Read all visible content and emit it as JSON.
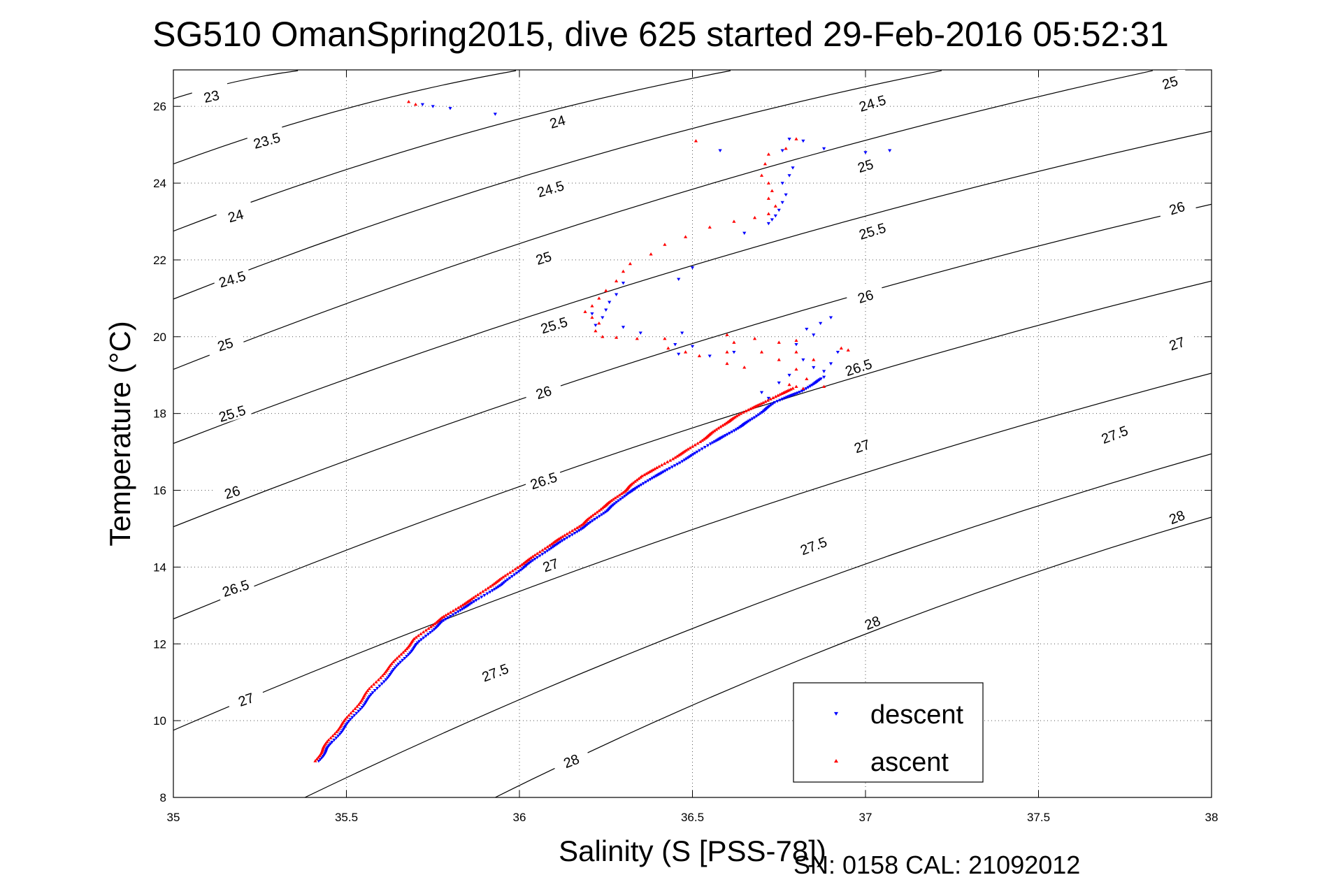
{
  "chart_data": {
    "type": "scatter",
    "title": "SG510 OmanSpring2015, dive 625 started 29-Feb-2016 05:52:31",
    "xlabel": "Salinity (S [PSS-78])",
    "ylabel": "Temperature (°C)",
    "xlim": [
      35,
      38
    ],
    "ylim": [
      8,
      26.95
    ],
    "xticks": [
      35,
      35.5,
      36,
      36.5,
      37,
      37.5,
      38
    ],
    "xtick_labels": [
      "35",
      "35.5",
      "36",
      "36.5",
      "37",
      "37.5",
      "38"
    ],
    "yticks": [
      8,
      10,
      12,
      14,
      16,
      18,
      20,
      22,
      24,
      26
    ],
    "ytick_labels": [
      "8",
      "10",
      "12",
      "14",
      "16",
      "18",
      "20",
      "22",
      "24",
      "26"
    ],
    "grid": true,
    "legend_position": "bottom-right",
    "footer": "SN: 0158  CAL: 21092012",
    "colors": {
      "descent": "#0000ff",
      "ascent": "#ff0000",
      "contour": "#000000"
    },
    "density_contours": [
      {
        "level": 23,
        "label": "23",
        "points": [
          [
            35,
            26.2
          ],
          [
            35.36,
            26.93
          ]
        ],
        "label_points": [
          [
            35.11,
            26.26
          ]
        ]
      },
      {
        "level": 23.5,
        "label": "23.5",
        "points": [
          [
            35,
            24.5
          ],
          [
            35.99,
            26.93
          ]
        ],
        "label_points": [
          [
            35.27,
            25.11
          ]
        ]
      },
      {
        "level": 24,
        "label": "24",
        "points": [
          [
            35,
            22.75
          ],
          [
            36.61,
            26.93
          ]
        ],
        "label_points": [
          [
            35.18,
            23.15
          ],
          [
            36.11,
            25.6
          ]
        ]
      },
      {
        "level": 24.5,
        "label": "24.5",
        "points": [
          [
            35,
            20.98
          ],
          [
            37.22,
            26.93
          ]
        ],
        "label_points": [
          [
            35.17,
            21.5
          ],
          [
            36.09,
            23.85
          ],
          [
            37.02,
            26.08
          ]
        ]
      },
      {
        "level": 25,
        "label": "25",
        "points": [
          [
            35,
            19.15
          ],
          [
            37.83,
            26.93
          ]
        ],
        "label_points": [
          [
            35.15,
            19.8
          ],
          [
            36.07,
            22.05
          ],
          [
            37.0,
            24.45
          ],
          [
            37.88,
            26.62
          ]
        ]
      },
      {
        "level": 25.5,
        "label": "25.5",
        "points": [
          [
            35,
            17.22
          ],
          [
            38,
            25.35
          ]
        ],
        "label_points": [
          [
            35.17,
            18.0
          ],
          [
            36.1,
            20.3
          ],
          [
            37.02,
            22.75
          ]
        ]
      },
      {
        "level": 26,
        "label": "26",
        "points": [
          [
            35,
            15.05
          ],
          [
            38,
            23.45
          ]
        ],
        "label_points": [
          [
            35.17,
            15.95
          ],
          [
            36.07,
            18.55
          ],
          [
            37.0,
            21.05
          ],
          [
            37.9,
            23.35
          ]
        ]
      },
      {
        "level": 26.5,
        "label": "26.5",
        "points": [
          [
            35,
            12.65
          ],
          [
            38,
            21.45
          ]
        ],
        "label_points": [
          [
            35.18,
            13.45
          ],
          [
            36.07,
            16.25
          ],
          [
            36.98,
            19.2
          ]
        ]
      },
      {
        "level": 27,
        "label": "27",
        "points": [
          [
            35,
            9.75
          ],
          [
            38,
            19.05
          ]
        ],
        "label_points": [
          [
            35.21,
            10.55
          ],
          [
            36.09,
            14.05
          ],
          [
            36.99,
            17.15
          ],
          [
            37.9,
            19.82
          ]
        ]
      },
      {
        "level": 27.5,
        "label": "27.5",
        "points": [
          [
            35.38,
            8
          ],
          [
            38,
            16.95
          ]
        ],
        "label_points": [
          [
            35.93,
            11.25
          ],
          [
            36.85,
            14.55
          ],
          [
            37.72,
            17.45
          ]
        ]
      },
      {
        "level": 28,
        "label": "28",
        "points": [
          [
            35.93,
            8
          ],
          [
            38,
            15.3
          ]
        ],
        "label_points": [
          [
            36.15,
            8.95
          ],
          [
            37.02,
            12.55
          ],
          [
            37.9,
            15.3
          ]
        ]
      }
    ],
    "series": [
      {
        "name": "descent",
        "marker": "triangle-down",
        "trace": [
          [
            35.42,
            8.95
          ],
          [
            35.46,
            9.45
          ],
          [
            35.52,
            10.1
          ],
          [
            35.58,
            10.75
          ],
          [
            35.65,
            11.45
          ],
          [
            35.71,
            12.05
          ],
          [
            35.78,
            12.6
          ],
          [
            35.86,
            13.05
          ],
          [
            35.95,
            13.55
          ],
          [
            36.02,
            14.05
          ],
          [
            36.1,
            14.55
          ],
          [
            36.18,
            15.0
          ],
          [
            36.25,
            15.45
          ],
          [
            36.31,
            15.9
          ],
          [
            36.38,
            16.3
          ],
          [
            36.46,
            16.7
          ],
          [
            36.55,
            17.2
          ],
          [
            36.62,
            17.55
          ],
          [
            36.68,
            17.9
          ],
          [
            36.74,
            18.3
          ],
          [
            36.82,
            18.6
          ],
          [
            36.88,
            18.95
          ]
        ],
        "extra": [
          [
            35.75,
            26.0
          ],
          [
            35.8,
            25.95
          ],
          [
            35.93,
            25.8
          ],
          [
            35.72,
            26.05
          ],
          [
            36.76,
            24.85
          ],
          [
            36.79,
            24.4
          ],
          [
            36.78,
            24.2
          ],
          [
            36.76,
            24.0
          ],
          [
            36.77,
            23.7
          ],
          [
            36.76,
            23.5
          ],
          [
            36.75,
            23.3
          ],
          [
            36.74,
            23.15
          ],
          [
            36.73,
            23.05
          ],
          [
            36.72,
            22.95
          ],
          [
            36.78,
            25.15
          ],
          [
            36.82,
            25.1
          ],
          [
            36.88,
            24.9
          ],
          [
            37.07,
            24.85
          ],
          [
            37.0,
            24.8
          ],
          [
            36.58,
            24.85
          ],
          [
            36.65,
            22.7
          ],
          [
            36.5,
            21.8
          ],
          [
            36.46,
            21.5
          ],
          [
            36.3,
            21.4
          ],
          [
            36.28,
            21.1
          ],
          [
            36.26,
            20.9
          ],
          [
            36.25,
            20.7
          ],
          [
            36.24,
            20.5
          ],
          [
            36.22,
            20.3
          ],
          [
            36.21,
            20.6
          ],
          [
            36.3,
            20.25
          ],
          [
            36.35,
            20.1
          ],
          [
            36.47,
            20.1
          ],
          [
            36.45,
            19.8
          ],
          [
            36.46,
            19.55
          ],
          [
            36.5,
            19.75
          ],
          [
            36.55,
            19.5
          ],
          [
            36.62,
            19.6
          ],
          [
            36.8,
            19.8
          ],
          [
            36.82,
            19.4
          ],
          [
            36.85,
            19.2
          ],
          [
            36.88,
            19.1
          ],
          [
            36.9,
            19.3
          ],
          [
            36.92,
            19.6
          ],
          [
            36.85,
            20.05
          ],
          [
            36.83,
            20.2
          ],
          [
            36.87,
            20.35
          ],
          [
            36.9,
            20.5
          ],
          [
            36.78,
            19.0
          ],
          [
            36.75,
            18.8
          ],
          [
            36.7,
            18.55
          ],
          [
            36.72,
            18.4
          ]
        ]
      },
      {
        "name": "ascent",
        "marker": "triangle-up",
        "trace": [
          [
            35.41,
            8.95
          ],
          [
            35.45,
            9.5
          ],
          [
            35.51,
            10.15
          ],
          [
            35.57,
            10.85
          ],
          [
            35.64,
            11.55
          ],
          [
            35.7,
            12.15
          ],
          [
            35.78,
            12.7
          ],
          [
            35.86,
            13.15
          ],
          [
            35.94,
            13.65
          ],
          [
            36.02,
            14.15
          ],
          [
            36.1,
            14.65
          ],
          [
            36.18,
            15.1
          ],
          [
            36.24,
            15.55
          ],
          [
            36.3,
            15.95
          ],
          [
            36.35,
            16.35
          ],
          [
            36.44,
            16.8
          ],
          [
            36.52,
            17.25
          ],
          [
            36.58,
            17.65
          ],
          [
            36.64,
            18.0
          ],
          [
            36.72,
            18.35
          ],
          [
            36.8,
            18.7
          ]
        ],
        "extra": [
          [
            35.68,
            26.12
          ],
          [
            35.7,
            26.05
          ],
          [
            36.51,
            25.1
          ],
          [
            36.8,
            25.15
          ],
          [
            36.77,
            24.9
          ],
          [
            36.72,
            24.75
          ],
          [
            36.71,
            24.5
          ],
          [
            36.7,
            24.2
          ],
          [
            36.72,
            24.0
          ],
          [
            36.73,
            23.8
          ],
          [
            36.72,
            23.6
          ],
          [
            36.74,
            23.4
          ],
          [
            36.72,
            23.2
          ],
          [
            36.68,
            23.1
          ],
          [
            36.62,
            23.0
          ],
          [
            36.55,
            22.85
          ],
          [
            36.48,
            22.6
          ],
          [
            36.42,
            22.4
          ],
          [
            36.38,
            22.15
          ],
          [
            36.32,
            21.9
          ],
          [
            36.3,
            21.7
          ],
          [
            36.28,
            21.45
          ],
          [
            36.25,
            21.2
          ],
          [
            36.23,
            21.0
          ],
          [
            36.21,
            20.8
          ],
          [
            36.19,
            20.65
          ],
          [
            36.21,
            20.5
          ],
          [
            36.23,
            20.35
          ],
          [
            36.22,
            20.15
          ],
          [
            36.24,
            20.0
          ],
          [
            36.28,
            19.98
          ],
          [
            36.34,
            19.95
          ],
          [
            36.42,
            19.95
          ],
          [
            36.43,
            19.7
          ],
          [
            36.48,
            19.6
          ],
          [
            36.52,
            19.5
          ],
          [
            36.6,
            19.6
          ],
          [
            36.62,
            19.85
          ],
          [
            36.68,
            19.95
          ],
          [
            36.7,
            19.6
          ],
          [
            36.75,
            19.85
          ],
          [
            36.8,
            19.9
          ],
          [
            36.6,
            19.3
          ],
          [
            36.65,
            19.2
          ],
          [
            36.75,
            19.4
          ],
          [
            36.8,
            19.15
          ],
          [
            36.83,
            18.9
          ],
          [
            36.85,
            19.4
          ],
          [
            36.93,
            19.7
          ],
          [
            36.95,
            19.65
          ],
          [
            36.88,
            18.7
          ],
          [
            36.82,
            18.65
          ],
          [
            36.78,
            18.75
          ],
          [
            36.8,
            19.6
          ],
          [
            36.6,
            20.05
          ]
        ]
      }
    ]
  }
}
